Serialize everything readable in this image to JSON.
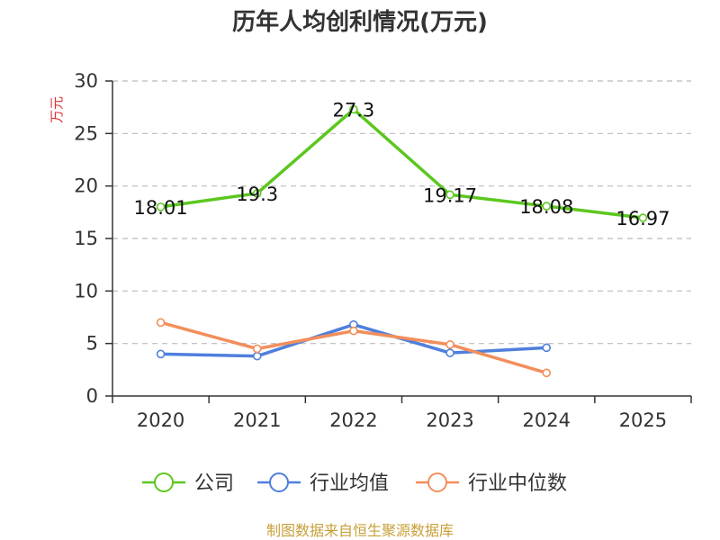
{
  "chart_data": {
    "type": "line",
    "title": "历年人均创利情况(万元)",
    "ylabel": "万元",
    "categories": [
      "2020",
      "2021",
      "2022",
      "2023",
      "2024",
      "2025"
    ],
    "yticks": [
      "0",
      "5",
      "10",
      "15",
      "20",
      "25",
      "30"
    ],
    "ylim": [
      0,
      30
    ],
    "grid": true,
    "legend_position": "bottom",
    "series": [
      {
        "name": "公司",
        "color": "#5cc71f",
        "values": [
          18.01,
          19.3,
          27.3,
          19.17,
          18.08,
          16.97
        ],
        "labels": [
          "18.01",
          "19.3",
          "27.3",
          "19.17",
          "18.08",
          "16.97"
        ]
      },
      {
        "name": "行业均值",
        "color": "#4f7fdc",
        "values": [
          4.0,
          3.8,
          6.8,
          4.1,
          4.6,
          null
        ]
      },
      {
        "name": "行业中位数",
        "color": "#f28e5c",
        "values": [
          7.0,
          4.5,
          6.2,
          4.9,
          2.2,
          null
        ]
      }
    ],
    "source": "制图数据来自恒生聚源数据库",
    "source_color": "#c8a03a",
    "ylabel_color": "#e03030"
  }
}
